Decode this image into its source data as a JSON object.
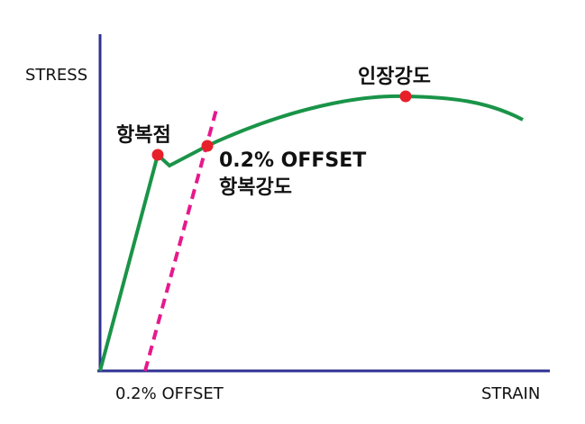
{
  "axes": {
    "y_label": "STRESS",
    "x_label": "STRAIN",
    "offset_label": "0.2% OFFSET"
  },
  "points": [
    {
      "label": "항복점"
    },
    {
      "label_lines": [
        "0.2% OFFSET",
        "항복강도"
      ]
    },
    {
      "label": "인장강도"
    }
  ]
}
